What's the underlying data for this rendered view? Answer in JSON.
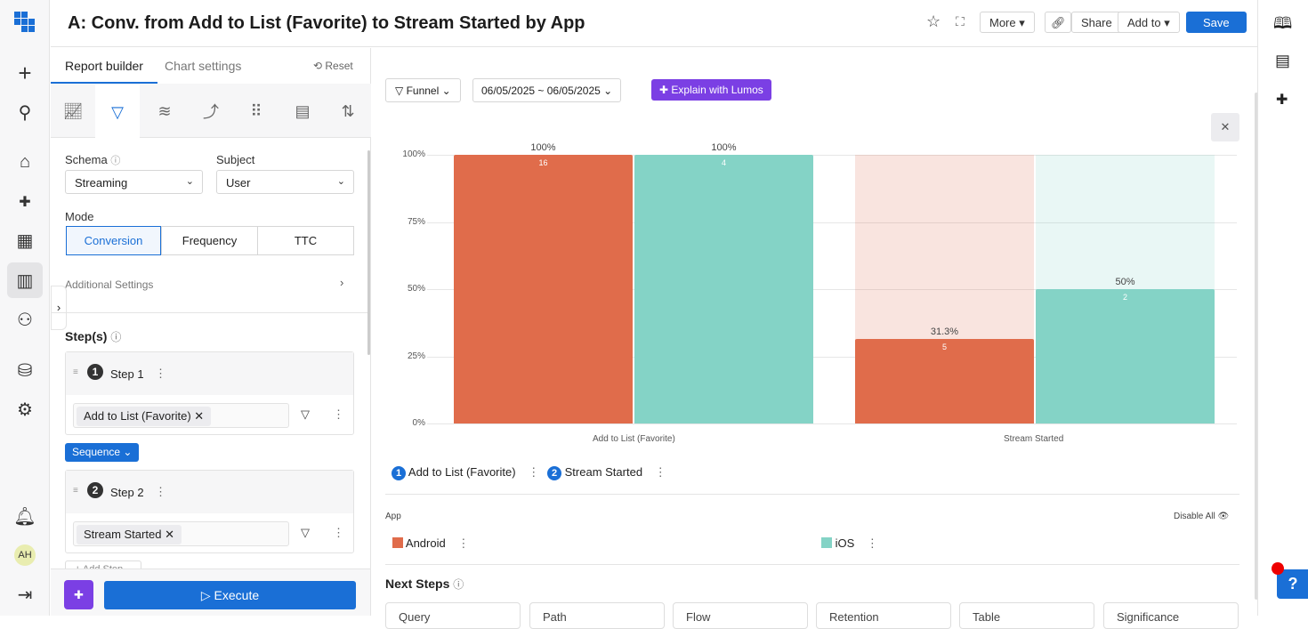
{
  "header": {
    "title": "A: Conv. from Add to List (Favorite) to Stream Started by App",
    "more": "More",
    "share": "Share",
    "add_to": "Add to",
    "save": "Save"
  },
  "nav": {
    "avatar": "AH"
  },
  "panel": {
    "tabs": [
      "Report builder",
      "Chart settings"
    ],
    "reset": "Reset",
    "schema_label": "Schema",
    "schema_value": "Streaming",
    "subject_label": "Subject",
    "subject_value": "User",
    "mode_label": "Mode",
    "modes": [
      "Conversion",
      "Frequency",
      "TTC"
    ],
    "additional": "Additional Settings",
    "steps_label": "Step(s)",
    "steps": [
      {
        "num": "1",
        "name": "Step 1",
        "event": "Add to List (Favorite)"
      },
      {
        "num": "2",
        "name": "Step 2",
        "event": "Stream Started"
      }
    ],
    "sequence": "Sequence",
    "add_step": "+ Add Step",
    "execute": "Execute"
  },
  "toolbar": {
    "chart_type": "Funnel",
    "date_range": "06/05/2025 ~ 06/05/2025",
    "lumos": "Explain with Lumos"
  },
  "chart_data": {
    "type": "bar",
    "categories": [
      "Add to List (Favorite)",
      "Stream Started"
    ],
    "ylim": [
      0,
      100
    ],
    "yticks": [
      "0%",
      "25%",
      "50%",
      "75%",
      "100%"
    ],
    "series": [
      {
        "name": "Android",
        "color": "#e06c4b",
        "values": [
          100,
          31.3
        ],
        "labels": [
          "100%",
          "31.3%"
        ],
        "counts": [
          "16",
          "5"
        ]
      },
      {
        "name": "iOS",
        "color": "#84d3c6",
        "values": [
          100,
          50
        ],
        "labels": [
          "100%",
          "50%"
        ],
        "counts": [
          "4",
          "2"
        ]
      }
    ]
  },
  "legend": {
    "steps": [
      {
        "num": "1",
        "label": "Add to List (Favorite)"
      },
      {
        "num": "2",
        "label": "Stream Started"
      }
    ],
    "group_label": "App",
    "disable_all": "Disable All",
    "items": [
      "Android",
      "iOS"
    ]
  },
  "next_steps": {
    "title": "Next Steps",
    "cards": [
      "Query",
      "Path",
      "Flow",
      "Retention",
      "Table",
      "Significance"
    ]
  }
}
